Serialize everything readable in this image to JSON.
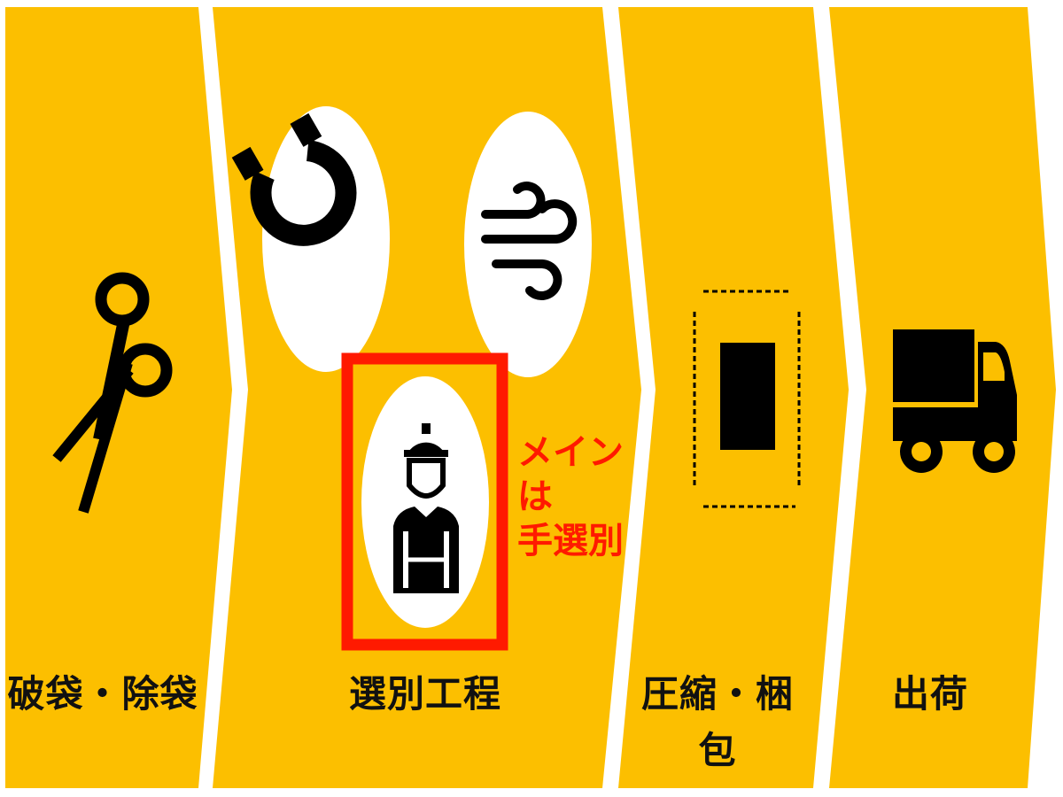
{
  "stages": [
    {
      "id": "bag-breaking",
      "label": "破袋・除袋",
      "icon": "scissors-icon"
    },
    {
      "id": "sorting",
      "label": "選別工程",
      "icons": [
        "magnet-icon",
        "wind-icon",
        "worker-icon"
      ]
    },
    {
      "id": "compress-pack",
      "label": "圧縮・梱包",
      "icon": "bale-icon"
    },
    {
      "id": "shipping",
      "label": "出荷",
      "icon": "truck-icon"
    }
  ],
  "callout": {
    "line1": "メインは",
    "line2": "手選別"
  },
  "colors": {
    "band": "#fcbf00",
    "highlight": "#ff1a00",
    "icon": "#000000",
    "circle": "#ffffff"
  }
}
